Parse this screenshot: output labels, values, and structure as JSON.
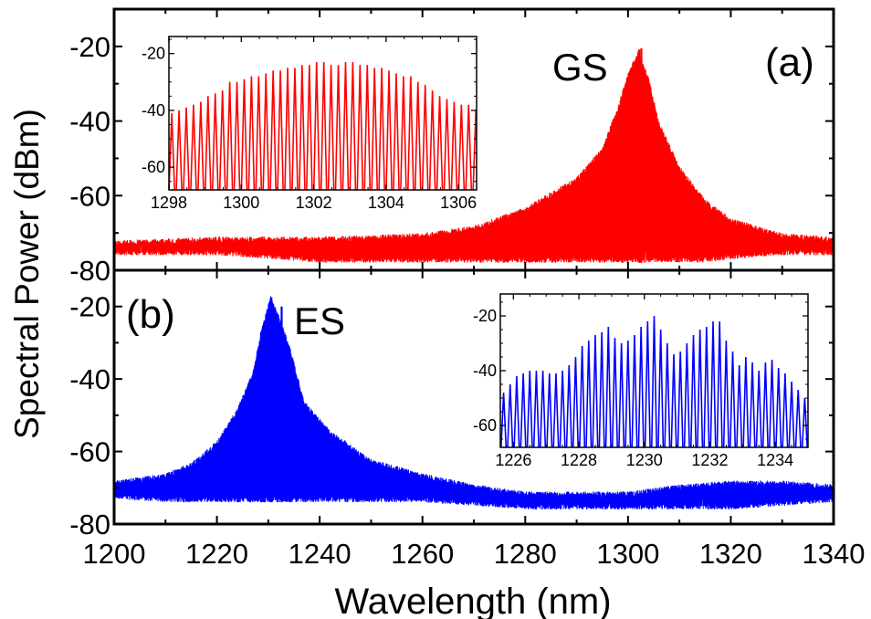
{
  "figure": {
    "ylabel": "Spectral Power (dBm)",
    "xlabel": "Wavelength (nm)"
  },
  "chart_data": [
    {
      "id": "panel-a",
      "type": "line",
      "panel_label": "(a)",
      "annotation": "GS",
      "color": "#ff0000",
      "xlim": [
        1200,
        1340
      ],
      "ylim": [
        -80,
        -10
      ],
      "xticks": [
        1200,
        1220,
        1240,
        1260,
        1280,
        1300,
        1320,
        1340
      ],
      "xtick_labels": [
        "1200",
        "1220",
        "1240",
        "1260",
        "1280",
        "1300",
        "1320",
        "1340"
      ],
      "yticks": [
        -80,
        -60,
        -40,
        -20
      ],
      "ytick_labels": [
        "-80",
        "-60",
        "-40",
        "-20"
      ],
      "envelope": {
        "x": [
          1200,
          1220,
          1240,
          1260,
          1270,
          1280,
          1290,
          1295,
          1298,
          1300,
          1302,
          1304,
          1306,
          1310,
          1315,
          1320,
          1330,
          1340
        ],
        "top": [
          -72,
          -71,
          -71,
          -70,
          -68,
          -63,
          -55,
          -47,
          -36,
          -27,
          -21,
          -28,
          -40,
          -52,
          -61,
          -66,
          -70,
          -71
        ],
        "bottom": [
          -76,
          -76,
          -78,
          -78,
          -78,
          -78,
          -78,
          -78,
          -78,
          -78,
          -78,
          -78,
          -78,
          -78,
          -78,
          -77,
          -76,
          -76
        ]
      },
      "peaks_x": [
        1298.9,
        1302.2,
        1302.6
      ],
      "peaks_y": [
        -70,
        -20.8,
        -20.5
      ]
    },
    {
      "id": "panel-b",
      "type": "line",
      "panel_label": "(b)",
      "annotation": "ES",
      "color": "#0000ff",
      "xlim": [
        1200,
        1340
      ],
      "ylim": [
        -80,
        -10
      ],
      "xticks": [
        1200,
        1220,
        1240,
        1260,
        1280,
        1300,
        1320,
        1340
      ],
      "xtick_labels": [
        "1200",
        "1220",
        "1240",
        "1260",
        "1280",
        "1300",
        "1320",
        "1340"
      ],
      "yticks": [
        -80,
        -60,
        -40,
        -20
      ],
      "ytick_labels": [
        "-80",
        "-60",
        "-40",
        "-20"
      ],
      "envelope": {
        "x": [
          1200,
          1210,
          1215,
          1220,
          1224,
          1227,
          1229,
          1230.5,
          1232,
          1234,
          1237,
          1242,
          1250,
          1260,
          1270,
          1280,
          1290,
          1300,
          1310,
          1320,
          1330,
          1340
        ],
        "top": [
          -68,
          -66,
          -63,
          -57,
          -48,
          -38,
          -24,
          -17,
          -22,
          -30,
          -46,
          -54,
          -62,
          -66,
          -69,
          -71,
          -71,
          -71,
          -69,
          -68,
          -68,
          -69
        ],
        "bottom": [
          -73,
          -74,
          -74,
          -74,
          -74,
          -74,
          -74,
          -74,
          -74,
          -74,
          -74,
          -74,
          -74,
          -74,
          -75,
          -76,
          -76,
          -76,
          -76,
          -76,
          -75,
          -74
        ]
      },
      "peaks_x": [
        1228.6,
        1229.3,
        1230.6,
        1231.8,
        1232.6,
        1234.2
      ],
      "peaks_y": [
        -27,
        -30,
        -17.5,
        -22,
        -20,
        -35
      ]
    }
  ],
  "insets": [
    {
      "id": "inset-a",
      "type": "line",
      "color": "#ff0000",
      "xlim": [
        1298,
        1306.5
      ],
      "ylim": [
        -68,
        -14
      ],
      "xticks": [
        1298,
        1300,
        1302,
        1304,
        1306
      ],
      "xtick_labels": [
        "1298",
        "1300",
        "1302",
        "1304",
        "1306"
      ],
      "yticks": [
        -60,
        -40,
        -20
      ],
      "ytick_labels": [
        "-60",
        "-40",
        "-20"
      ],
      "start": 1298.08,
      "spacing": 0.2,
      "count": 43,
      "peak_y": [
        -41,
        -40,
        -39,
        -38,
        -37,
        -35,
        -34,
        -33,
        -30,
        -30,
        -29,
        -28,
        -28,
        -27,
        -26,
        -26,
        -25,
        -25,
        -24,
        -24,
        -23,
        -23,
        -24,
        -24,
        -23,
        -23,
        -24,
        -24,
        -25,
        -25,
        -26,
        -27,
        -28,
        -28,
        -30,
        -31,
        -33,
        -35,
        -36,
        -37,
        -38,
        -38,
        -40
      ],
      "floor": -68
    },
    {
      "id": "inset-b",
      "type": "line",
      "color": "#0000ff",
      "xlim": [
        1225.6,
        1235
      ],
      "ylim": [
        -68,
        -12
      ],
      "xticks": [
        1226,
        1228,
        1230,
        1232,
        1234
      ],
      "xtick_labels": [
        "1226",
        "1228",
        "1230",
        "1232",
        "1234"
      ],
      "yticks": [
        -60,
        -40,
        -20
      ],
      "ytick_labels": [
        "-60",
        "-40",
        "-20"
      ],
      "start": 1225.7,
      "spacing": 0.2,
      "count": 47,
      "peak_y": [
        -48,
        -45,
        -42,
        -41,
        -40,
        -40,
        -40,
        -41,
        -41,
        -40,
        -38,
        -35,
        -31,
        -29,
        -27,
        -26,
        -24,
        -28,
        -30,
        -29,
        -27,
        -24,
        -22,
        -20,
        -25,
        -30,
        -34,
        -33,
        -30,
        -27,
        -25,
        -24,
        -22,
        -22,
        -29,
        -33,
        -38,
        -35,
        -37,
        -40,
        -37,
        -36,
        -39,
        -41,
        -44,
        -47,
        -50
      ],
      "floor": -68
    }
  ]
}
